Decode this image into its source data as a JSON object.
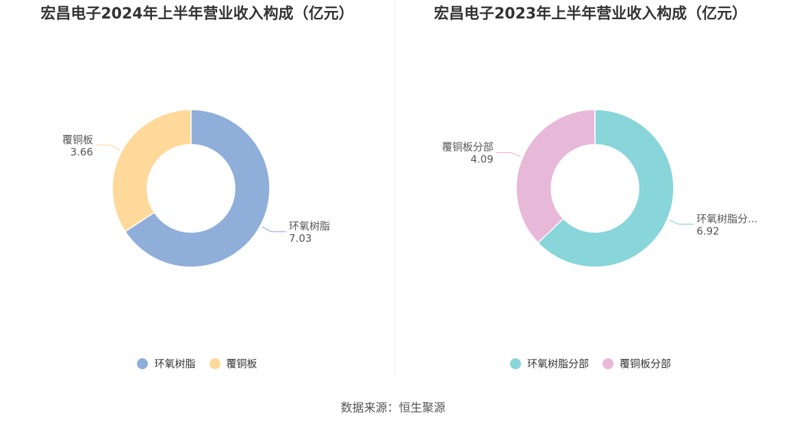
{
  "source": "数据来源：恒生聚源",
  "chart_data": [
    {
      "type": "pie",
      "title": "宏昌电子2024年上半年营业收入构成（亿元）",
      "series": [
        {
          "name": "环氧树脂",
          "value": 7.03,
          "display_label": "环氧树脂",
          "value_label": "7.03",
          "color": "#8FAEDA"
        },
        {
          "name": "覆铜板",
          "value": 3.66,
          "display_label": "覆铜板",
          "value_label": "3.66",
          "color": "#FFD99A"
        }
      ],
      "legend": [
        "环氧树脂",
        "覆铜板"
      ],
      "legend_position": "bottom"
    },
    {
      "type": "pie",
      "title": "宏昌电子2023年上半年营业收入构成（亿元）",
      "series": [
        {
          "name": "环氧树脂分部",
          "value": 6.92,
          "display_label": "环氧树脂分...",
          "value_label": "6.92",
          "color": "#88D5DA"
        },
        {
          "name": "覆铜板分部",
          "value": 4.09,
          "display_label": "覆铜板分部",
          "value_label": "4.09",
          "color": "#E8B8D8"
        }
      ],
      "legend": [
        "环氧树脂分部",
        "覆铜板分部"
      ],
      "legend_position": "bottom"
    }
  ]
}
